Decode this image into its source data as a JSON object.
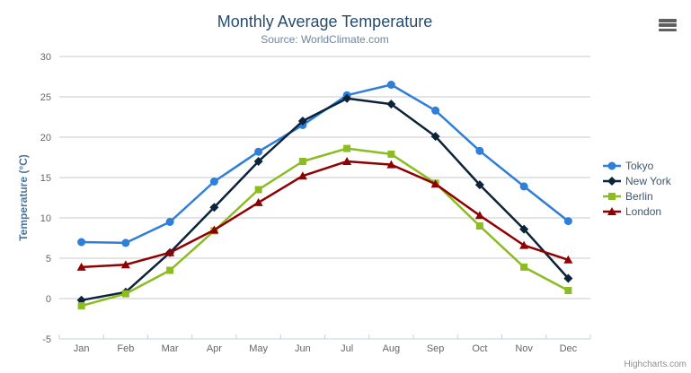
{
  "chart_data": {
    "type": "line",
    "title": "Monthly Average Temperature",
    "subtitle": "Source: WorldClimate.com",
    "xlabel": "",
    "ylabel": "Temperature (°C)",
    "categories": [
      "Jan",
      "Feb",
      "Mar",
      "Apr",
      "May",
      "Jun",
      "Jul",
      "Aug",
      "Sep",
      "Oct",
      "Nov",
      "Dec"
    ],
    "ylim": [
      -5,
      30
    ],
    "ytick_interval": 5,
    "grid": "horizontal",
    "legend_position": "right",
    "series": [
      {
        "name": "Tokyo",
        "color": "#2f7ed8",
        "marker": "circle",
        "values": [
          7.0,
          6.9,
          9.5,
          14.5,
          18.2,
          21.5,
          25.2,
          26.5,
          23.3,
          18.3,
          13.9,
          9.6
        ]
      },
      {
        "name": "New York",
        "color": "#0d233a",
        "marker": "diamond",
        "values": [
          -0.2,
          0.8,
          5.7,
          11.3,
          17.0,
          22.0,
          24.8,
          24.1,
          20.1,
          14.1,
          8.6,
          2.5
        ]
      },
      {
        "name": "Berlin",
        "color": "#8bbc21",
        "marker": "square",
        "values": [
          -0.9,
          0.6,
          3.5,
          8.4,
          13.5,
          17.0,
          18.6,
          17.9,
          14.3,
          9.0,
          3.9,
          1.0
        ]
      },
      {
        "name": "London",
        "color": "#910000",
        "marker": "triangle",
        "values": [
          3.9,
          4.2,
          5.7,
          8.5,
          11.9,
          15.2,
          17.0,
          16.6,
          14.2,
          10.3,
          6.6,
          4.8
        ]
      }
    ],
    "style_colors": {
      "title": "#274b6d",
      "subtitle": "#6d869f",
      "axis_title": "#4d759e",
      "axis_labels": "#666666",
      "grid_line": "#c8c8c8",
      "axis_line": "#c0d0e0",
      "legend_text": "#3e576f"
    }
  },
  "export_button": {
    "icon": "hamburger-icon"
  },
  "credits": {
    "label": "Highcharts.com"
  }
}
